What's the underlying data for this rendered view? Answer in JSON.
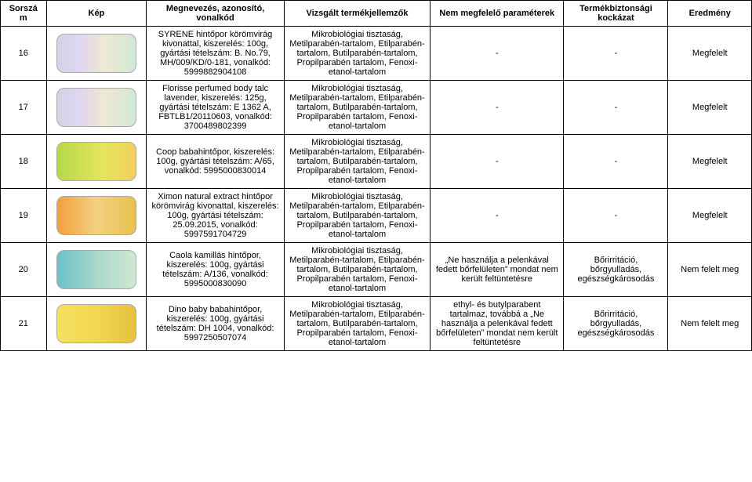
{
  "headers": {
    "c1": "Sorszám",
    "c2": "Kép",
    "c3": "Megnevezés, azonosító, vonalkód",
    "c4": "Vizsgált termékjellemzők",
    "c5": "Nem megfelelő paraméterek",
    "c6": "Termékbiztonsági kockázat",
    "c7": "Eredmény"
  },
  "rows": [
    {
      "n": "16",
      "img": "default",
      "name": "SYRENE hintőpor körömvirág kivonattal, kiszerelés: 100g, gyártási tételszám: B. No.79, MH/009/KD/0-181, vonalkód: 5999882904108",
      "test": "Mikrobiológiai tisztaság, Metilparabén-tartalom, Etilparabén-tartalom, Butilparabén-tartalom, Propilparabén tartalom, Fenoxi-etanol-tartalom",
      "param": "-",
      "risk": "-",
      "res": "Megfelelt"
    },
    {
      "n": "17",
      "img": "default",
      "name": "Florisse perfumed body talc lavender, kiszerelés: 125g, gyártási tételszám: E 1362 A, FBTLB1/20110603, vonalkód: 3700489802399",
      "test": "Mikrobiológiai tisztaság, Metilparabén-tartalom, Etilparabén-tartalom, Butilparabén-tartalom, Propilparabén tartalom, Fenoxi-etanol-tartalom",
      "param": "-",
      "risk": "-",
      "res": "Megfelelt"
    },
    {
      "n": "18",
      "img": "green",
      "name": "Coop babahintőpor, kiszerelés: 100g, gyártási tételszám: A/65, vonalkód: 5995000830014",
      "test": "Mikrobiológiai tisztaság, Metilparabén-tartalom, Etilparabén-tartalom, Butilparabén-tartalom, Propilparabén tartalom, Fenoxi-etanol-tartalom",
      "param": "-",
      "risk": "-",
      "res": "Megfelelt"
    },
    {
      "n": "19",
      "img": "orange",
      "name": "Ximon natural extract hintőpor körömvirág kivonattal, kiszerelés: 100g, gyártási tételszám: 25.09.2015, vonalkód: 5997591704729",
      "test": "Mikrobiológiai tisztaság, Metilparabén-tartalom, Etilparabén-tartalom, Butilparabén-tartalom, Propilparabén tartalom, Fenoxi-etanol-tartalom",
      "param": "-",
      "risk": "-",
      "res": "Megfelelt"
    },
    {
      "n": "20",
      "img": "teal",
      "name": "Caola kamillás hintőpor, kiszerelés: 100g, gyártási tételszám: A/136, vonalkód: 5995000830090",
      "test": "Mikrobiológiai tisztaság, Metilparabén-tartalom, Etilparabén-tartalom, Butilparabén-tartalom, Propilparabén tartalom, Fenoxi-etanol-tartalom",
      "param": "„Ne használja a pelenkával fedett bőrfelületen” mondat nem került feltüntetésre",
      "risk": "Bőrirritáció, bőrgyulladás, egészségkárosodás",
      "res": "Nem felelt meg"
    },
    {
      "n": "21",
      "img": "yellow",
      "name": "Dino baby babahintőpor, kiszerelés: 100g, gyártási tételszám: DH 1004, vonalkód: 5997250507074",
      "test": "Mikrobiológiai tisztaság, Metilparabén-tartalom, Etilparabén-tartalom, Butilparabén-tartalom, Propilparabén tartalom, Fenoxi-etanol-tartalom",
      "param": "ethyl- és butylparabent tartalmaz, továbbá a „Ne használja a pelenkával fedett bőrfelületen” mondat nem került feltüntetésre",
      "risk": "Bőrirritáció, bőrgyulladás, egészségkárosodás",
      "res": "Nem felelt meg"
    }
  ]
}
